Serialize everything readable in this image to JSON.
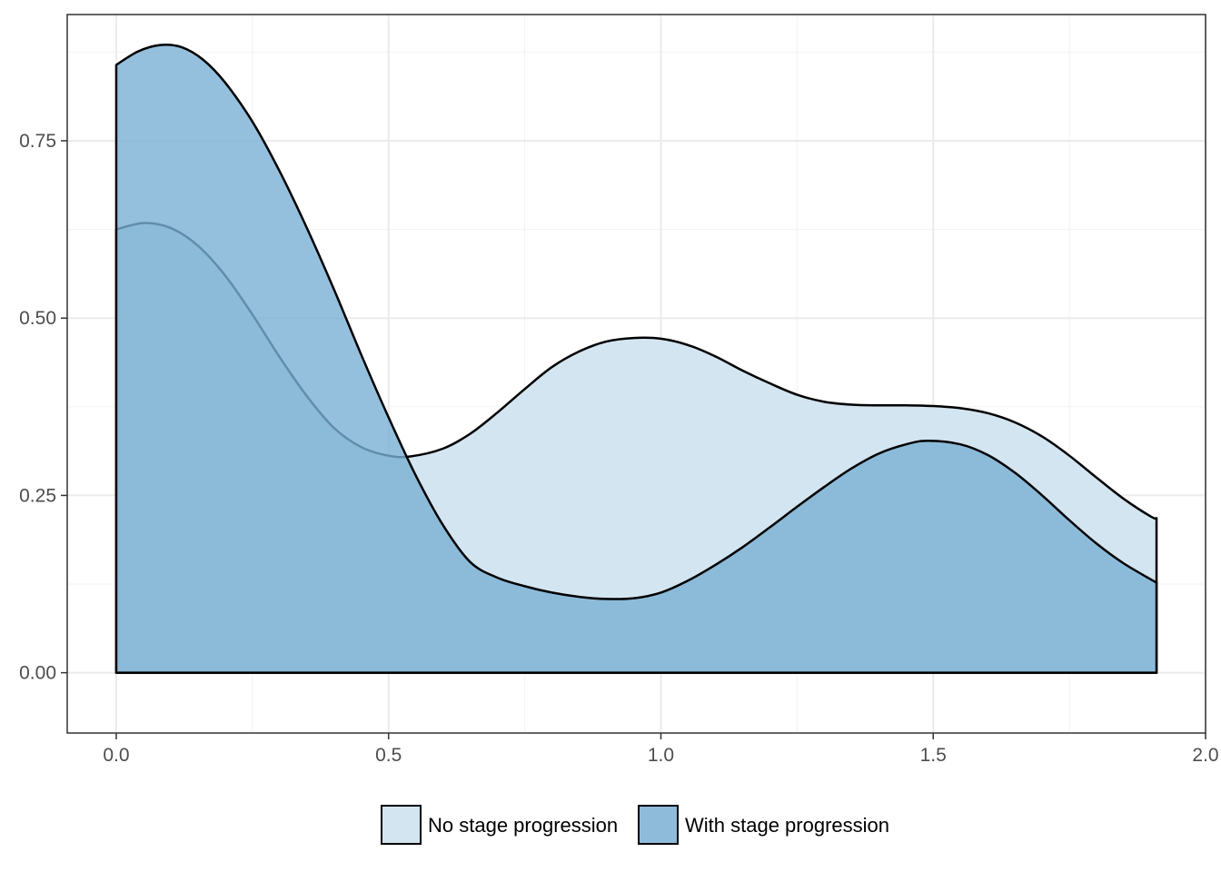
{
  "chart_data": {
    "type": "area",
    "subtype": "density",
    "title": "",
    "xlabel": "",
    "ylabel": "",
    "xlim": [
      -0.09,
      2.0
    ],
    "ylim": [
      -0.085,
      0.928
    ],
    "x_ticks": [
      0.0,
      0.5,
      1.0,
      1.5,
      2.0
    ],
    "x_tick_labels": [
      "0.0",
      "0.5",
      "1.0",
      "1.5",
      "2.0"
    ],
    "y_ticks": [
      0.0,
      0.25,
      0.5,
      0.75
    ],
    "y_tick_labels": [
      "0.00",
      "0.25",
      "0.50",
      "0.75"
    ],
    "x_minor_ticks": [
      0.25,
      0.75,
      1.25,
      1.75
    ],
    "y_minor_ticks": [
      0.125,
      0.375,
      0.625,
      0.875
    ],
    "grid": true,
    "legend_position": "bottom",
    "series": [
      {
        "name": "No stage progression",
        "color": "#d3e5f1",
        "points": [
          [
            0.0,
            0.625
          ],
          [
            0.05,
            0.634
          ],
          [
            0.1,
            0.627
          ],
          [
            0.15,
            0.602
          ],
          [
            0.2,
            0.56
          ],
          [
            0.25,
            0.505
          ],
          [
            0.3,
            0.445
          ],
          [
            0.35,
            0.39
          ],
          [
            0.4,
            0.345
          ],
          [
            0.45,
            0.318
          ],
          [
            0.5,
            0.306
          ],
          [
            0.54,
            0.305
          ],
          [
            0.6,
            0.316
          ],
          [
            0.65,
            0.337
          ],
          [
            0.7,
            0.367
          ],
          [
            0.75,
            0.4
          ],
          [
            0.8,
            0.431
          ],
          [
            0.85,
            0.453
          ],
          [
            0.9,
            0.467
          ],
          [
            0.95,
            0.472
          ],
          [
            1.0,
            0.471
          ],
          [
            1.05,
            0.462
          ],
          [
            1.1,
            0.446
          ],
          [
            1.15,
            0.426
          ],
          [
            1.2,
            0.408
          ],
          [
            1.25,
            0.392
          ],
          [
            1.3,
            0.382
          ],
          [
            1.35,
            0.378
          ],
          [
            1.4,
            0.377
          ],
          [
            1.45,
            0.377
          ],
          [
            1.5,
            0.376
          ],
          [
            1.55,
            0.373
          ],
          [
            1.6,
            0.366
          ],
          [
            1.65,
            0.353
          ],
          [
            1.7,
            0.333
          ],
          [
            1.75,
            0.306
          ],
          [
            1.8,
            0.275
          ],
          [
            1.85,
            0.245
          ],
          [
            1.9,
            0.22
          ],
          [
            1.91,
            0.218
          ]
        ]
      },
      {
        "name": "With stage progression",
        "color": "#7ab0d4",
        "points": [
          [
            0.0,
            0.857
          ],
          [
            0.04,
            0.876
          ],
          [
            0.08,
            0.885
          ],
          [
            0.12,
            0.882
          ],
          [
            0.16,
            0.864
          ],
          [
            0.2,
            0.832
          ],
          [
            0.25,
            0.777
          ],
          [
            0.3,
            0.707
          ],
          [
            0.35,
            0.627
          ],
          [
            0.4,
            0.54
          ],
          [
            0.45,
            0.448
          ],
          [
            0.5,
            0.36
          ],
          [
            0.55,
            0.278
          ],
          [
            0.6,
            0.208
          ],
          [
            0.65,
            0.156
          ],
          [
            0.7,
            0.134
          ],
          [
            0.75,
            0.122
          ],
          [
            0.8,
            0.113
          ],
          [
            0.85,
            0.107
          ],
          [
            0.9,
            0.104
          ],
          [
            0.95,
            0.105
          ],
          [
            1.0,
            0.113
          ],
          [
            1.05,
            0.13
          ],
          [
            1.1,
            0.152
          ],
          [
            1.15,
            0.177
          ],
          [
            1.2,
            0.205
          ],
          [
            1.25,
            0.234
          ],
          [
            1.3,
            0.262
          ],
          [
            1.35,
            0.288
          ],
          [
            1.4,
            0.309
          ],
          [
            1.45,
            0.322
          ],
          [
            1.49,
            0.327
          ],
          [
            1.55,
            0.322
          ],
          [
            1.6,
            0.307
          ],
          [
            1.65,
            0.282
          ],
          [
            1.7,
            0.25
          ],
          [
            1.75,
            0.215
          ],
          [
            1.8,
            0.182
          ],
          [
            1.85,
            0.154
          ],
          [
            1.91,
            0.127
          ]
        ]
      }
    ]
  }
}
